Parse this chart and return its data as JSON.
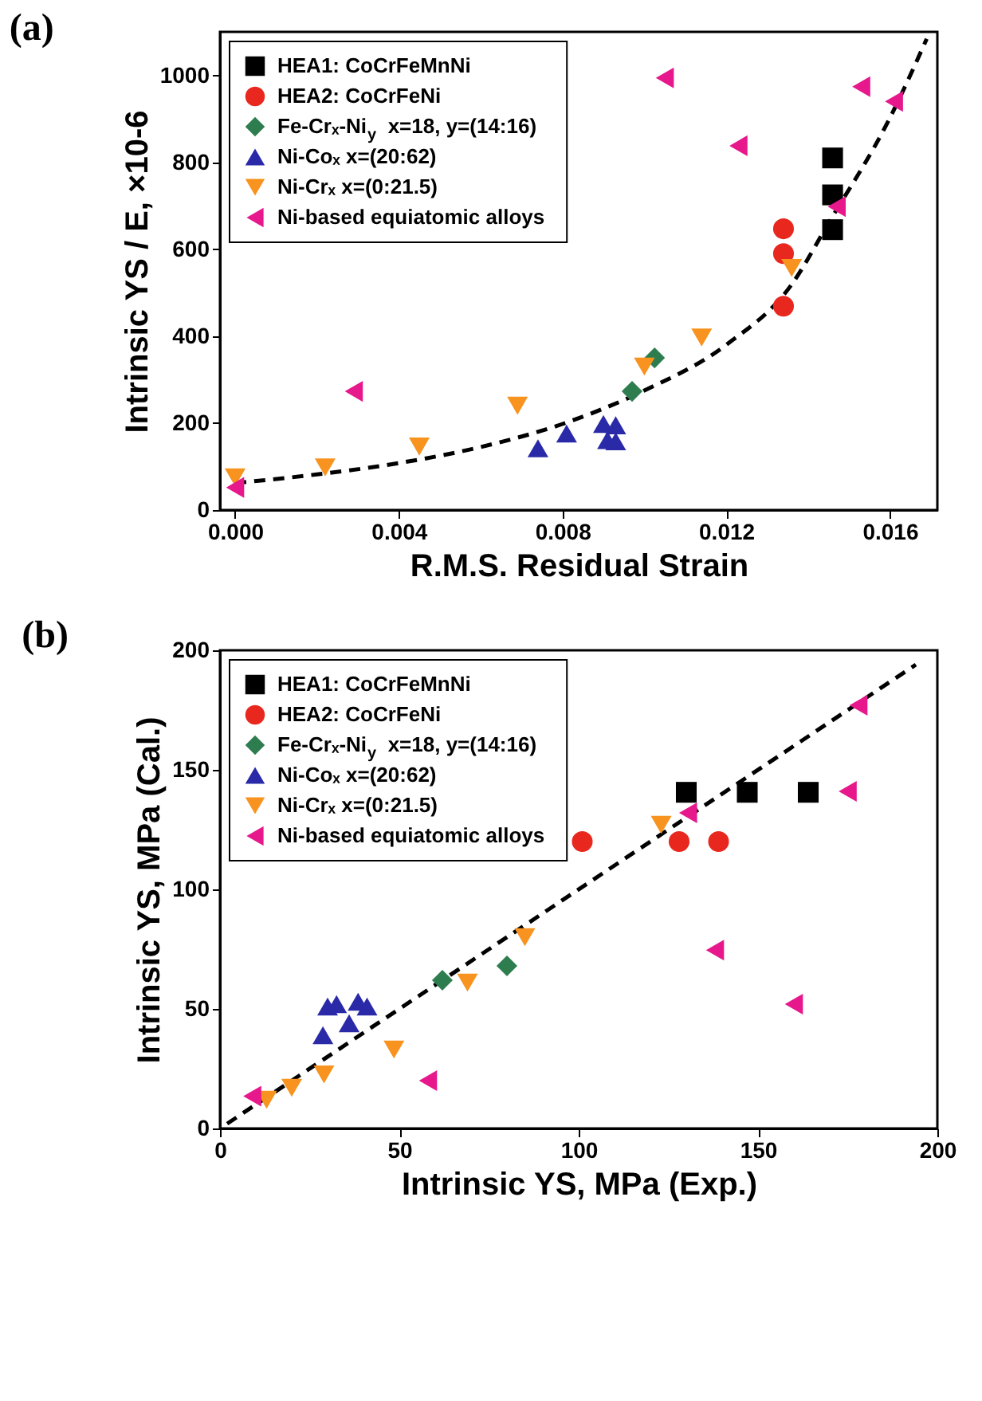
{
  "chart_data": [
    {
      "type": "scatter",
      "title": "(a)",
      "xlabel": "R.M.S. Residual Strain",
      "ylabel": "Intrinsic YS / E, ×10-6",
      "xlim": [
        -0.00037,
        0.01716
      ],
      "ylim": [
        0,
        1100
      ],
      "xticks": [
        {
          "value": 0,
          "label": "0.000"
        },
        {
          "value": 0.004,
          "label": "0.004"
        },
        {
          "value": 0.008,
          "label": "0.008"
        },
        {
          "value": 0.012,
          "label": "0.012"
        },
        {
          "value": 0.016,
          "label": "0.016"
        }
      ],
      "yticks": [
        0,
        200,
        400,
        600,
        800,
        1000
      ],
      "grid": false,
      "legend": "top left",
      "series": [
        {
          "name": "HEA1: CoCrFeMnNi",
          "color": "#000000",
          "marker": "square",
          "x": [
            0.0146,
            0.0146,
            0.0146
          ],
          "values": [
            810,
            725,
            645
          ]
        },
        {
          "name": "HEA2: CoCrFeNi",
          "color": "#e8281e",
          "marker": "circle",
          "x": [
            0.0134,
            0.0134,
            0.0134
          ],
          "values": [
            647,
            590,
            469
          ]
        },
        {
          "name": "Fe-Crₓ-Ni$_{y}$ x=18, y=(14:16)",
          "color": "#2e7d4f",
          "marker": "diamond",
          "x": [
            0.0097,
            0.01025
          ],
          "values": [
            273,
            350
          ]
        },
        {
          "name": "Ni-Coₓ x=(20:62)",
          "color": "#2a2aa8",
          "marker": "triangle",
          "x": [
            0.0074,
            0.0081,
            0.009,
            0.0093,
            0.0091,
            0.0093
          ],
          "values": [
            142,
            176,
            198,
            195,
            161,
            158
          ]
        },
        {
          "name": "Ni-Crₓ x=(0:21.5)",
          "color": "#f7931e",
          "marker": "triangle-down",
          "x": [
            0.0,
            0.0022,
            0.0045,
            0.0069,
            0.01,
            0.0114,
            0.0136
          ],
          "values": [
            75,
            98,
            146,
            240,
            330,
            397,
            557
          ]
        },
        {
          "name": "Ni-based equiatomic alloys",
          "color": "#e6188c",
          "marker": "triangle-left",
          "x": [
            0.0,
            0.0029,
            0.0105,
            0.0123,
            0.0147,
            0.0153,
            0.0161
          ],
          "values": [
            52,
            273,
            994,
            838,
            698,
            974,
            940
          ]
        },
        {
          "type": "line",
          "color": "#000000",
          "line_style": "dashed",
          "x": [
            0,
            0.002,
            0.004,
            0.006,
            0.008,
            0.01,
            0.012,
            0.0136,
            0.0145,
            0.016,
            0.0169
          ],
          "values": [
            62,
            82,
            108,
            145,
            198,
            275,
            380,
            519,
            660,
            902,
            1084
          ]
        }
      ]
    },
    {
      "type": "scatter",
      "title": "(b)",
      "xlabel": "Intrinsic YS, MPa (Exp.)",
      "ylabel": "Intrinsic YS, MPa (Cal.)",
      "xlim": [
        0,
        200
      ],
      "ylim": [
        0,
        200
      ],
      "xticks": [
        0,
        50,
        100,
        150,
        200
      ],
      "yticks": [
        0,
        50,
        100,
        150,
        200
      ],
      "grid": false,
      "legend": "top left",
      "series": [
        {
          "name": "HEA1: CoCrFeMnNi",
          "color": "#000000",
          "marker": "square",
          "x": [
            130,
            147,
            164
          ],
          "values": [
            140.6,
            140.6,
            140.6
          ]
        },
        {
          "name": "HEA2: CoCrFeNi",
          "color": "#e8281e",
          "marker": "circle",
          "x": [
            101,
            128,
            139
          ],
          "values": [
            120,
            120,
            120
          ]
        },
        {
          "name": "Fe-Crₓ-Ni$_{y}$ x=18, y=(14:16)",
          "color": "#2e7d4f",
          "marker": "diamond",
          "x": [
            62,
            80
          ],
          "values": [
            62,
            68
          ]
        },
        {
          "name": "Ni-Coₓ x=(20:62)",
          "color": "#2a2aa8",
          "marker": "triangle",
          "x": [
            28.7,
            30,
            32.5,
            36,
            38.5,
            41
          ],
          "values": [
            39,
            51,
            52,
            44,
            53,
            51
          ]
        },
        {
          "name": "Ni-Crₓ x=(0:21.5)",
          "color": "#f7931e",
          "marker": "triangle-down",
          "x": [
            13,
            20,
            29,
            48.5,
            69,
            85,
            123
          ],
          "values": [
            12,
            17,
            22.6,
            33,
            61,
            80,
            127
          ]
        },
        {
          "name": "Ni-based equiatomic alloys",
          "color": "#e6188c",
          "marker": "triangle-left",
          "x": [
            9,
            58,
            130.5,
            138,
            160,
            175,
            178
          ],
          "values": [
            13.5,
            20,
            132,
            74.6,
            52,
            141,
            177
          ]
        },
        {
          "type": "line",
          "color": "#000000",
          "line_style": "dashed",
          "x": [
            2,
            194
          ],
          "values": [
            2,
            194
          ]
        }
      ]
    }
  ]
}
